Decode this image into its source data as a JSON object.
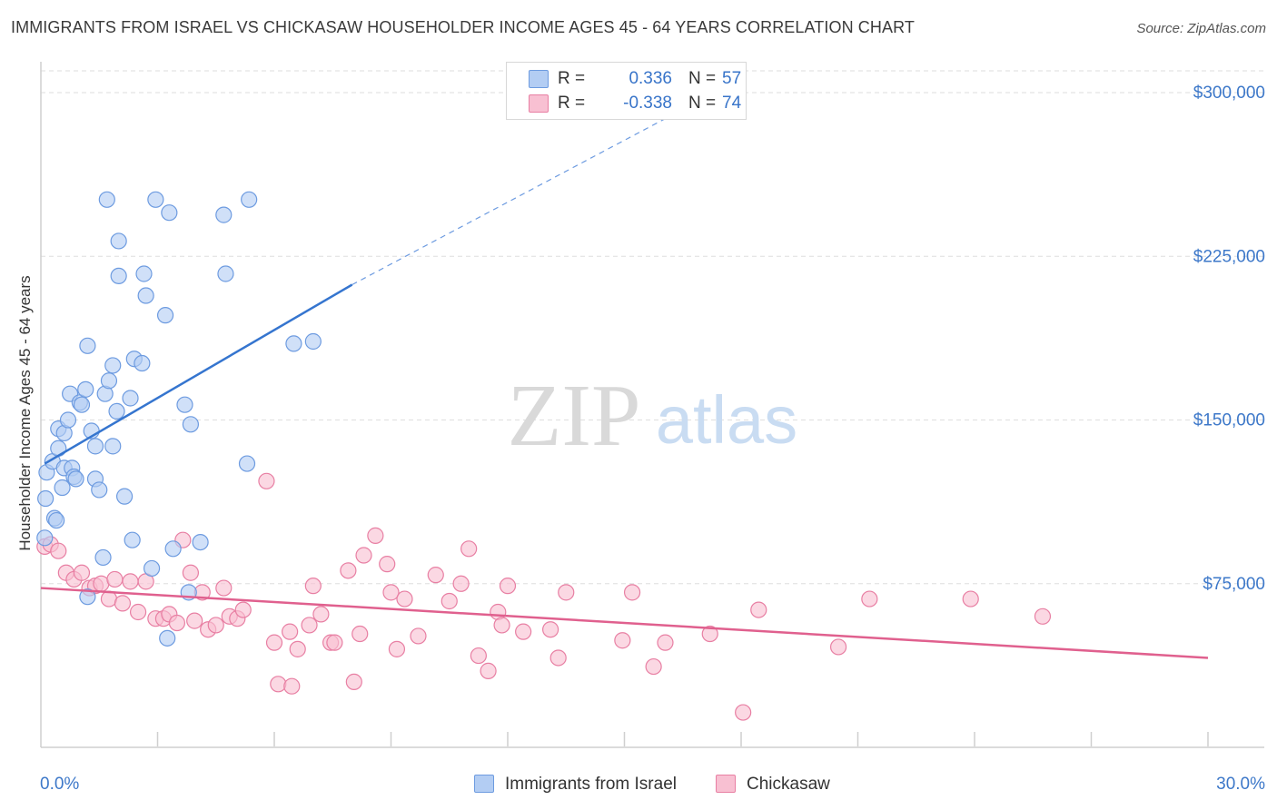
{
  "title": "IMMIGRANTS FROM ISRAEL VS CHICKASAW HOUSEHOLDER INCOME AGES 45 - 64 YEARS CORRELATION CHART",
  "source": "Source: ZipAtlas.com",
  "watermark": {
    "zip": "ZIP",
    "atlas": "atlas"
  },
  "legend_top": [
    {
      "r_label": "R =",
      "r_value": "0.336",
      "n_label": "N =",
      "n_value": "57"
    },
    {
      "r_label": "R =",
      "r_value": "-0.338",
      "n_label": "N =",
      "n_value": "74"
    }
  ],
  "colors": {
    "israel_fill": "#b3cdf3",
    "israel_stroke": "#6d9be0",
    "israel_line": "#3575cf",
    "chickasaw_fill": "#f8c0d2",
    "chickasaw_stroke": "#e87fa3",
    "chickasaw_line": "#e0608e",
    "axis_text": "#3d78c9",
    "grid": "#dedede"
  },
  "chart_data": {
    "type": "scatter",
    "title": "IMMIGRANTS FROM ISRAEL VS CHICKASAW HOUSEHOLDER INCOME AGES 45 - 64 YEARS CORRELATION CHART",
    "xlabel": "",
    "ylabel": "Householder Income Ages 45 - 64 years",
    "xlim": [
      0,
      30
    ],
    "ylim": [
      0,
      310000
    ],
    "x_tick_labels": [
      "0.0%",
      "30.0%"
    ],
    "y_ticks": [
      75000,
      150000,
      225000,
      300000
    ],
    "y_tick_labels": [
      "$75,000",
      "$150,000",
      "$225,000",
      "$300,000"
    ],
    "grid": "horizontal dashed",
    "legend_position": "bottom-center",
    "series": [
      {
        "name": "Immigrants from Israel",
        "r": 0.336,
        "n": 57,
        "trend": {
          "x": [
            0.1,
            8.0
          ],
          "y": [
            130000,
            212000
          ],
          "dashed_extension_to": [
            30.0,
            420000
          ]
        },
        "points": [
          [
            0.1,
            96000
          ],
          [
            0.12,
            114000
          ],
          [
            0.15,
            126000
          ],
          [
            0.3,
            131000
          ],
          [
            0.35,
            105000
          ],
          [
            0.4,
            104000
          ],
          [
            0.45,
            137000
          ],
          [
            0.45,
            146000
          ],
          [
            0.55,
            119000
          ],
          [
            0.6,
            144000
          ],
          [
            0.6,
            128000
          ],
          [
            0.7,
            150000
          ],
          [
            0.75,
            162000
          ],
          [
            0.8,
            128000
          ],
          [
            0.85,
            124000
          ],
          [
            0.9,
            123000
          ],
          [
            1.0,
            158000
          ],
          [
            1.05,
            157000
          ],
          [
            1.15,
            164000
          ],
          [
            1.2,
            184000
          ],
          [
            1.2,
            69000
          ],
          [
            1.3,
            145000
          ],
          [
            1.4,
            138000
          ],
          [
            1.4,
            123000
          ],
          [
            1.5,
            118000
          ],
          [
            1.6,
            87000
          ],
          [
            1.65,
            162000
          ],
          [
            1.7,
            251000
          ],
          [
            1.75,
            168000
          ],
          [
            1.85,
            175000
          ],
          [
            1.85,
            138000
          ],
          [
            1.95,
            154000
          ],
          [
            2.0,
            216000
          ],
          [
            2.0,
            232000
          ],
          [
            2.15,
            115000
          ],
          [
            2.3,
            160000
          ],
          [
            2.35,
            95000
          ],
          [
            2.4,
            178000
          ],
          [
            2.6,
            176000
          ],
          [
            2.65,
            217000
          ],
          [
            2.7,
            207000
          ],
          [
            2.85,
            82000
          ],
          [
            2.95,
            251000
          ],
          [
            3.2,
            198000
          ],
          [
            3.25,
            50000
          ],
          [
            3.3,
            245000
          ],
          [
            3.4,
            91000
          ],
          [
            3.7,
            157000
          ],
          [
            3.8,
            71000
          ],
          [
            3.85,
            148000
          ],
          [
            4.1,
            94000
          ],
          [
            4.7,
            244000
          ],
          [
            4.75,
            217000
          ],
          [
            5.3,
            130000
          ],
          [
            5.35,
            251000
          ],
          [
            6.5,
            185000
          ],
          [
            7.0,
            186000
          ]
        ]
      },
      {
        "name": "Chickasaw",
        "r": -0.338,
        "n": 74,
        "trend": {
          "x": [
            0.0,
            30.0
          ],
          "y": [
            73000,
            41000
          ]
        },
        "points": [
          [
            0.1,
            92000
          ],
          [
            0.25,
            93000
          ],
          [
            0.45,
            90000
          ],
          [
            0.65,
            80000
          ],
          [
            0.85,
            77000
          ],
          [
            1.05,
            80000
          ],
          [
            1.25,
            73000
          ],
          [
            1.4,
            74000
          ],
          [
            1.55,
            75000
          ],
          [
            1.75,
            68000
          ],
          [
            1.9,
            77000
          ],
          [
            2.1,
            66000
          ],
          [
            2.3,
            76000
          ],
          [
            2.5,
            62000
          ],
          [
            2.7,
            76000
          ],
          [
            2.95,
            59000
          ],
          [
            3.15,
            59000
          ],
          [
            3.3,
            61000
          ],
          [
            3.5,
            57000
          ],
          [
            3.65,
            95000
          ],
          [
            3.85,
            80000
          ],
          [
            3.95,
            58000
          ],
          [
            4.15,
            71000
          ],
          [
            4.3,
            54000
          ],
          [
            4.5,
            56000
          ],
          [
            4.7,
            73000
          ],
          [
            4.85,
            60000
          ],
          [
            5.05,
            59000
          ],
          [
            5.2,
            63000
          ],
          [
            5.8,
            122000
          ],
          [
            6.0,
            48000
          ],
          [
            6.1,
            29000
          ],
          [
            6.4,
            53000
          ],
          [
            6.45,
            28000
          ],
          [
            6.6,
            45000
          ],
          [
            6.9,
            56000
          ],
          [
            7.0,
            74000
          ],
          [
            7.2,
            61000
          ],
          [
            7.45,
            48000
          ],
          [
            7.55,
            48000
          ],
          [
            7.9,
            81000
          ],
          [
            8.05,
            30000
          ],
          [
            8.2,
            52000
          ],
          [
            8.3,
            88000
          ],
          [
            8.6,
            97000
          ],
          [
            8.9,
            84000
          ],
          [
            9.0,
            71000
          ],
          [
            9.15,
            45000
          ],
          [
            9.35,
            68000
          ],
          [
            9.7,
            51000
          ],
          [
            10.15,
            79000
          ],
          [
            10.5,
            67000
          ],
          [
            10.8,
            75000
          ],
          [
            11.0,
            91000
          ],
          [
            11.25,
            42000
          ],
          [
            11.5,
            35000
          ],
          [
            11.75,
            62000
          ],
          [
            11.85,
            56000
          ],
          [
            12.0,
            74000
          ],
          [
            12.4,
            53000
          ],
          [
            13.1,
            54000
          ],
          [
            13.3,
            41000
          ],
          [
            13.5,
            71000
          ],
          [
            14.95,
            49000
          ],
          [
            15.2,
            71000
          ],
          [
            15.75,
            37000
          ],
          [
            16.05,
            48000
          ],
          [
            17.2,
            52000
          ],
          [
            18.05,
            16000
          ],
          [
            18.45,
            63000
          ],
          [
            20.5,
            46000
          ],
          [
            21.3,
            68000
          ],
          [
            23.9,
            68000
          ],
          [
            25.75,
            60000
          ]
        ]
      }
    ]
  }
}
